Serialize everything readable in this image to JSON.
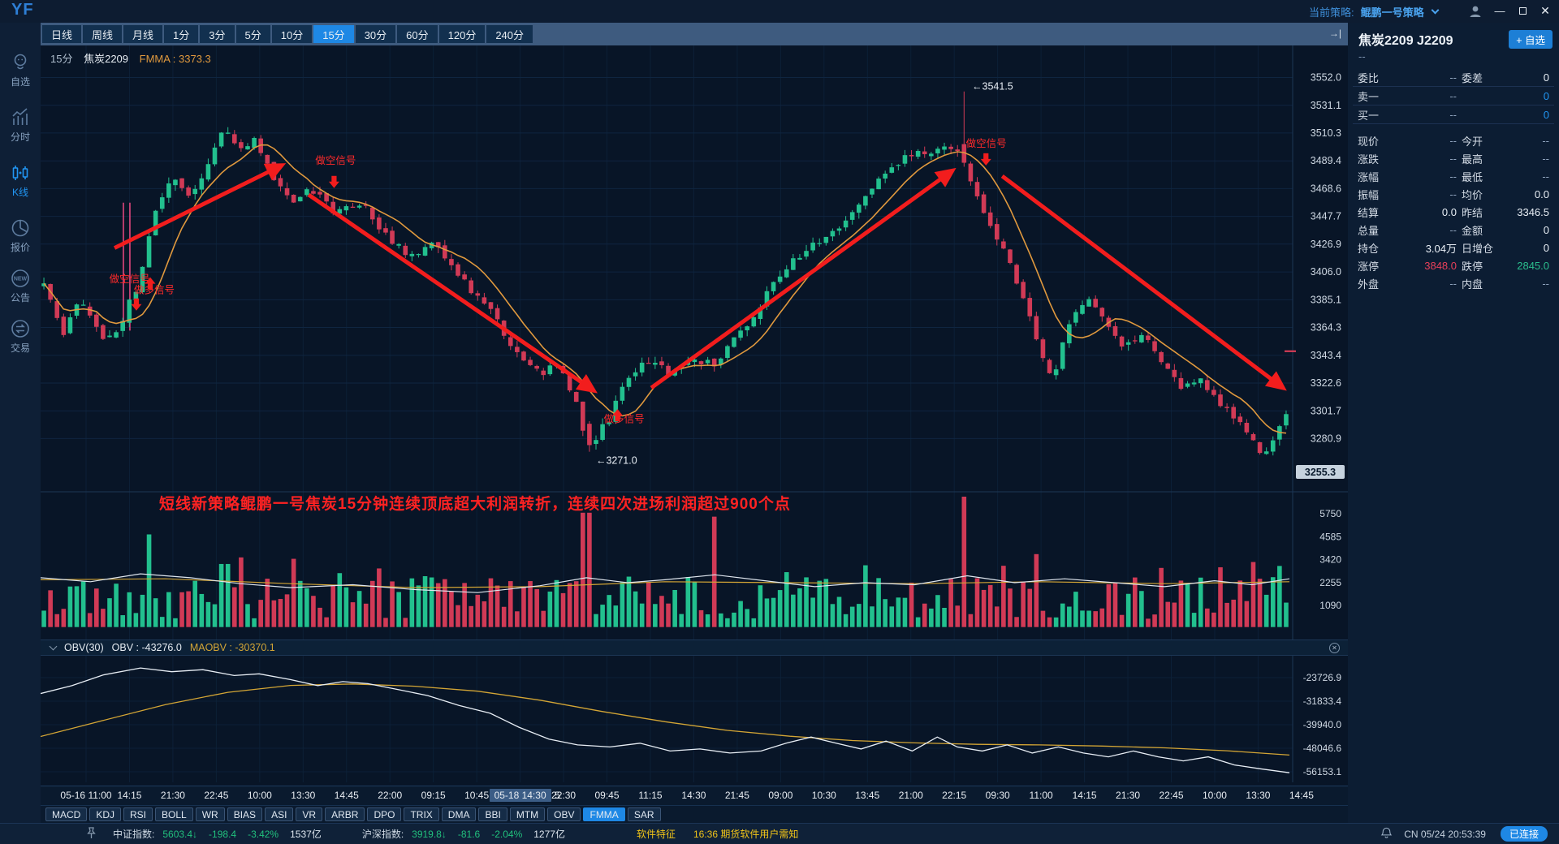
{
  "window": {
    "logo": "YF",
    "strategy_label": "当前策略:",
    "strategy_name": "鲲鹏一号策略"
  },
  "sidebar": {
    "items": [
      {
        "id": "watchlist",
        "label": "自选",
        "active": false
      },
      {
        "id": "intraday",
        "label": "分时",
        "active": false
      },
      {
        "id": "kline",
        "label": "K线",
        "active": true
      },
      {
        "id": "quotes",
        "label": "报价",
        "active": false
      },
      {
        "id": "notice",
        "label": "公告",
        "active": false
      },
      {
        "id": "trade",
        "label": "交易",
        "active": false
      }
    ]
  },
  "toolbar": {
    "timeframes": [
      "日线",
      "周线",
      "月线",
      "1分",
      "3分",
      "5分",
      "10分",
      "15分",
      "30分",
      "60分",
      "120分",
      "240分"
    ],
    "active": "15分",
    "collapse_icon": "→|"
  },
  "chart_header": {
    "period": "15分",
    "symbol": "焦炭2209",
    "ma_label": "FMMA : 3373.3"
  },
  "banner": {
    "text": "短线新策略鲲鹏一号焦炭15分钟连续顶底超大利润转折，连续四次进场利润超过900个点"
  },
  "obv_header": {
    "title": "OBV(30)",
    "obv": "OBV : -43276.0",
    "maobv": "MAOBV : -30370.1"
  },
  "indicator_tabs": {
    "items": [
      "MACD",
      "KDJ",
      "RSI",
      "BOLL",
      "WR",
      "BIAS",
      "ASI",
      "VR",
      "ARBR",
      "DPO",
      "TRIX",
      "DMA",
      "BBI",
      "MTM",
      "OBV",
      "FMMA",
      "SAR"
    ],
    "active": "FMMA"
  },
  "quote_panel": {
    "title": "焦炭2209 J2209",
    "add_button": "+ 自选",
    "subtitle": "--",
    "rows": [
      {
        "l1": "委比",
        "v1": "--",
        "l2": "委差",
        "v2": "0",
        "sep": true
      },
      {
        "l1": "卖一",
        "v1": "--",
        "l2": "",
        "v2": "0",
        "c2": "blue",
        "sep": true
      },
      {
        "l1": "买一",
        "v1": "--",
        "l2": "",
        "v2": "0",
        "c2": "blue",
        "sep": true,
        "gap": true
      },
      {
        "l1": "现价",
        "v1": "--",
        "l2": "今开",
        "v2": "--"
      },
      {
        "l1": "涨跌",
        "v1": "--",
        "l2": "最高",
        "v2": "--"
      },
      {
        "l1": "涨幅",
        "v1": "--",
        "l2": "最低",
        "v2": "--"
      },
      {
        "l1": "振幅",
        "v1": "--",
        "l2": "均价",
        "v2": "0.0"
      },
      {
        "l1": "结算",
        "v1": "0.0",
        "l2": "昨结",
        "v2": "3346.5"
      },
      {
        "l1": "总量",
        "v1": "--",
        "l2": "金额",
        "v2": "0"
      },
      {
        "l1": "持仓",
        "v1": "3.04万",
        "l2": "日增仓",
        "v2": "0"
      },
      {
        "l1": "涨停",
        "v1": "3848.0",
        "c1": "red",
        "l2": "跌停",
        "v2": "2845.0",
        "c2": "green"
      },
      {
        "l1": "外盘",
        "v1": "--",
        "l2": "内盘",
        "v2": "--"
      }
    ]
  },
  "status_bar": {
    "indices": [
      {
        "name": "中证指数:",
        "value": "5603.4↓",
        "change": "-198.4",
        "pct": "-3.42%",
        "amount": "1537亿"
      },
      {
        "name": "沪深指数:",
        "value": "3919.8↓",
        "change": "-81.6",
        "pct": "-2.04%",
        "amount": "1277亿"
      }
    ],
    "notices": [
      "软件特征",
      "16:36 期货软件用户需知"
    ],
    "clock": "CN 05/24 20:53:39",
    "connection": "已连接"
  },
  "colors": {
    "up": "#22c08e",
    "down": "#d13a56",
    "ma": "#e0993e",
    "accent": "#1e88e5",
    "signal_red": "#f21d1d",
    "pink": "#ff4d88",
    "axis_text": "#cfd9e4",
    "grid": "#0f2540",
    "vgrid": "#0c2037",
    "pane_border": "#1c3655"
  },
  "chart_data": {
    "type": "candlestick",
    "symbol": "焦炭2209",
    "period": "15分",
    "price_axis": [
      "3552.0",
      "3531.1",
      "3510.3",
      "3489.4",
      "3468.6",
      "3447.7",
      "3426.9",
      "3406.0",
      "3385.1",
      "3364.3",
      "3343.4",
      "3322.6",
      "3301.7",
      "3280.9"
    ],
    "last_price": "3255.3",
    "settle_price": 3346.5,
    "volume_axis": [
      "5750",
      "4585",
      "3420",
      "2255",
      "1090"
    ],
    "obv_axis": [
      "-23726.9",
      "-31833.4",
      "-39940.0",
      "-48046.6",
      "-56153.1"
    ],
    "time_axis": {
      "labels": [
        "05-16 11:00",
        "14:15",
        "21:30",
        "22:45",
        "10:00",
        "13:30",
        "14:45",
        "22:00",
        "09:15",
        "10:45",
        "05-18 14:30",
        "22:30",
        "09:45",
        "11:15",
        "14:30",
        "21:45",
        "09:00",
        "10:30",
        "13:45",
        "21:00",
        "22:15",
        "09:30",
        "11:00",
        "14:15",
        "21:30",
        "22:45",
        "10:00",
        "13:30",
        "14:45"
      ],
      "highlight_index": 10,
      "highlight_extra": "5"
    },
    "candle_count": 190,
    "price_path": [
      [
        0,
        3396
      ],
      [
        0.015,
        3360
      ],
      [
        0.03,
        3386
      ],
      [
        0.048,
        3352
      ],
      [
        0.062,
        3368
      ],
      [
        0.075,
        3396
      ],
      [
        0.09,
        3452
      ],
      [
        0.105,
        3478
      ],
      [
        0.12,
        3462
      ],
      [
        0.145,
        3516
      ],
      [
        0.158,
        3496
      ],
      [
        0.17,
        3506
      ],
      [
        0.185,
        3478
      ],
      [
        0.2,
        3460
      ],
      [
        0.215,
        3468
      ],
      [
        0.235,
        3450
      ],
      [
        0.255,
        3458
      ],
      [
        0.275,
        3434
      ],
      [
        0.295,
        3418
      ],
      [
        0.315,
        3428
      ],
      [
        0.34,
        3396
      ],
      [
        0.36,
        3376
      ],
      [
        0.38,
        3346
      ],
      [
        0.4,
        3328
      ],
      [
        0.415,
        3340
      ],
      [
        0.43,
        3302
      ],
      [
        0.437,
        3272
      ],
      [
        0.455,
        3296
      ],
      [
        0.47,
        3326
      ],
      [
        0.49,
        3342
      ],
      [
        0.505,
        3328
      ],
      [
        0.52,
        3342
      ],
      [
        0.54,
        3336
      ],
      [
        0.56,
        3360
      ],
      [
        0.58,
        3386
      ],
      [
        0.6,
        3412
      ],
      [
        0.62,
        3426
      ],
      [
        0.64,
        3440
      ],
      [
        0.655,
        3458
      ],
      [
        0.67,
        3474
      ],
      [
        0.69,
        3490
      ],
      [
        0.71,
        3496
      ],
      [
        0.725,
        3500
      ],
      [
        0.74,
        3492
      ],
      [
        0.755,
        3452
      ],
      [
        0.77,
        3428
      ],
      [
        0.785,
        3396
      ],
      [
        0.8,
        3352
      ],
      [
        0.812,
        3326
      ],
      [
        0.825,
        3368
      ],
      [
        0.84,
        3390
      ],
      [
        0.855,
        3370
      ],
      [
        0.87,
        3350
      ],
      [
        0.885,
        3362
      ],
      [
        0.9,
        3338
      ],
      [
        0.915,
        3320
      ],
      [
        0.93,
        3328
      ],
      [
        0.945,
        3306
      ],
      [
        0.96,
        3296
      ],
      [
        0.972,
        3278
      ],
      [
        0.985,
        3268
      ],
      [
        1,
        3302
      ]
    ],
    "overrides": {
      "spike": {
        "frac": 0.742,
        "open": 3502,
        "close": 3488,
        "high": 3541.5
      },
      "low": {
        "frac": 0.437,
        "open": 3292,
        "close": 3276,
        "low": 3271.0
      }
    },
    "volume_spikes": [
      [
        0.085,
        4700
      ],
      [
        0.145,
        3200
      ],
      [
        0.437,
        5800
      ],
      [
        0.54,
        5600
      ],
      [
        0.742,
        6700
      ],
      [
        0.8,
        3700
      ],
      [
        0.9,
        3000
      ],
      [
        0.972,
        3300
      ],
      [
        0.995,
        3100
      ]
    ],
    "vol_line_white": [
      [
        0,
        2500
      ],
      [
        0.04,
        2300
      ],
      [
        0.08,
        2700
      ],
      [
        0.12,
        2500
      ],
      [
        0.16,
        2200
      ],
      [
        0.2,
        2000
      ],
      [
        0.25,
        2150
      ],
      [
        0.3,
        1900
      ],
      [
        0.35,
        1750
      ],
      [
        0.4,
        2100
      ],
      [
        0.437,
        2500
      ],
      [
        0.47,
        2250
      ],
      [
        0.5,
        2400
      ],
      [
        0.54,
        2650
      ],
      [
        0.58,
        2350
      ],
      [
        0.62,
        2050
      ],
      [
        0.66,
        2250
      ],
      [
        0.7,
        2150
      ],
      [
        0.742,
        2600
      ],
      [
        0.78,
        2250
      ],
      [
        0.82,
        2450
      ],
      [
        0.86,
        2250
      ],
      [
        0.9,
        2050
      ],
      [
        0.94,
        2350
      ],
      [
        0.97,
        2150
      ],
      [
        1,
        2450
      ]
    ],
    "vol_line_yellow": [
      [
        0,
        2400
      ],
      [
        0.1,
        2450
      ],
      [
        0.2,
        2200
      ],
      [
        0.3,
        2000
      ],
      [
        0.4,
        2050
      ],
      [
        0.5,
        2300
      ],
      [
        0.6,
        2250
      ],
      [
        0.7,
        2200
      ],
      [
        0.8,
        2300
      ],
      [
        0.9,
        2200
      ],
      [
        1,
        2300
      ]
    ],
    "obv_line": [
      [
        0,
        -29200
      ],
      [
        0.025,
        -26500
      ],
      [
        0.05,
        -22800
      ],
      [
        0.08,
        -20400
      ],
      [
        0.105,
        -21700
      ],
      [
        0.13,
        -21000
      ],
      [
        0.155,
        -23000
      ],
      [
        0.175,
        -22400
      ],
      [
        0.2,
        -24400
      ],
      [
        0.222,
        -26500
      ],
      [
        0.242,
        -25100
      ],
      [
        0.262,
        -25800
      ],
      [
        0.286,
        -27800
      ],
      [
        0.31,
        -29900
      ],
      [
        0.335,
        -33300
      ],
      [
        0.36,
        -36000
      ],
      [
        0.383,
        -40800
      ],
      [
        0.407,
        -44900
      ],
      [
        0.43,
        -46900
      ],
      [
        0.456,
        -47600
      ],
      [
        0.48,
        -46300
      ],
      [
        0.504,
        -49000
      ],
      [
        0.528,
        -48300
      ],
      [
        0.552,
        -49700
      ],
      [
        0.577,
        -49000
      ],
      [
        0.597,
        -46300
      ],
      [
        0.617,
        -44200
      ],
      [
        0.637,
        -46300
      ],
      [
        0.657,
        -48300
      ],
      [
        0.677,
        -45600
      ],
      [
        0.698,
        -49000
      ],
      [
        0.718,
        -44200
      ],
      [
        0.734,
        -47600
      ],
      [
        0.754,
        -49000
      ],
      [
        0.774,
        -46900
      ],
      [
        0.794,
        -49700
      ],
      [
        0.815,
        -47600
      ],
      [
        0.835,
        -49700
      ],
      [
        0.855,
        -51000
      ],
      [
        0.875,
        -49000
      ],
      [
        0.895,
        -51000
      ],
      [
        0.915,
        -52400
      ],
      [
        0.935,
        -51000
      ],
      [
        0.956,
        -53800
      ],
      [
        0.976,
        -55100
      ],
      [
        1,
        -56500
      ]
    ],
    "maobv_line": [
      [
        0,
        -44000
      ],
      [
        0.05,
        -38500
      ],
      [
        0.1,
        -33000
      ],
      [
        0.15,
        -28800
      ],
      [
        0.2,
        -26400
      ],
      [
        0.25,
        -25900
      ],
      [
        0.3,
        -26700
      ],
      [
        0.35,
        -28400
      ],
      [
        0.4,
        -31500
      ],
      [
        0.45,
        -35400
      ],
      [
        0.5,
        -38900
      ],
      [
        0.55,
        -41900
      ],
      [
        0.6,
        -43900
      ],
      [
        0.65,
        -45400
      ],
      [
        0.7,
        -46200
      ],
      [
        0.75,
        -46700
      ],
      [
        0.8,
        -46900
      ],
      [
        0.85,
        -47300
      ],
      [
        0.9,
        -47900
      ],
      [
        0.95,
        -48900
      ],
      [
        1,
        -50400
      ]
    ],
    "signals": [
      {
        "text": "做空信号",
        "dir": "down",
        "tx": 0.055,
        "tp": 3398,
        "ax": 0.0767,
        "ap": 3377
      },
      {
        "text": "做多信号",
        "dir": "up",
        "tx": 0.0748,
        "tp": 3390,
        "ax": 0.0878,
        "ap": 3402
      },
      {
        "text": "做空信号",
        "dir": "down",
        "tx": 0.22,
        "tp": 3487,
        "ax": 0.235,
        "ap": 3469
      },
      {
        "text": "做多信号",
        "dir": "up",
        "tx": 0.451,
        "tp": 3293,
        "ax": 0.462,
        "ap": 3303
      },
      {
        "text": "做空信号",
        "dir": "down",
        "tx": 0.741,
        "tp": 3500,
        "ax": 0.757,
        "ap": 3486
      }
    ],
    "price_tags": [
      {
        "text": "←3541.5",
        "x": 0.7458,
        "p": 3543
      },
      {
        "text": "←3271.0",
        "x": 0.4447,
        "p": 3262
      }
    ],
    "trend_arrows": [
      [
        0.0592,
        3424,
        0.193,
        3486
      ],
      [
        0.2146,
        3464,
        0.4428,
        3317
      ],
      [
        0.489,
        3319,
        0.73,
        3482
      ],
      [
        0.77,
        3478,
        0.9948,
        3319
      ]
    ],
    "pink_lines": [
      {
        "x": 0.0663,
        "p1": 3458,
        "p2": 3362
      },
      {
        "x": 0.0715,
        "p1": 3458,
        "p2": 3362
      }
    ]
  }
}
